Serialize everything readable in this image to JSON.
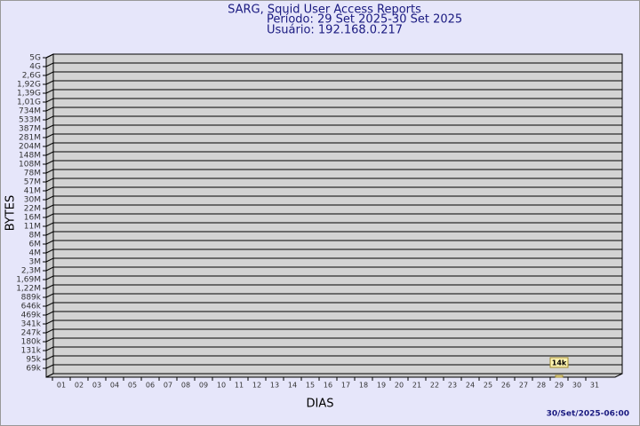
{
  "chart_data": {
    "type": "bar",
    "title": "SARG, Squid User Access Reports",
    "subtitle": [
      "Período: 29 Set 2025-30 Set 2025",
      "Usuário: 192.168.0.217"
    ],
    "y_label": "BYTES",
    "x_label": "DIAS",
    "footer": "30/Set/2025-06:00",
    "categories": [
      "01",
      "02",
      "03",
      "04",
      "05",
      "06",
      "07",
      "08",
      "09",
      "10",
      "11",
      "12",
      "13",
      "14",
      "15",
      "16",
      "17",
      "18",
      "19",
      "20",
      "21",
      "22",
      "23",
      "24",
      "25",
      "26",
      "27",
      "28",
      "29",
      "30",
      "31"
    ],
    "values": [
      null,
      null,
      null,
      null,
      null,
      null,
      null,
      null,
      null,
      null,
      null,
      null,
      null,
      null,
      null,
      null,
      null,
      null,
      null,
      null,
      null,
      null,
      null,
      null,
      null,
      null,
      null,
      null,
      14000,
      null,
      null
    ],
    "value_labels": [
      null,
      null,
      null,
      null,
      null,
      null,
      null,
      null,
      null,
      null,
      null,
      null,
      null,
      null,
      null,
      null,
      null,
      null,
      null,
      null,
      null,
      null,
      null,
      null,
      null,
      null,
      null,
      null,
      "14k",
      null,
      null
    ],
    "color": "#f5e6a0",
    "ylim": [
      0,
      5000000000
    ],
    "yticks": [
      {
        "value": 69000,
        "label": "69k"
      },
      {
        "value": 95000,
        "label": "95k"
      },
      {
        "value": 131000,
        "label": "131k"
      },
      {
        "value": 180000,
        "label": "180k"
      },
      {
        "value": 247000,
        "label": "247k"
      },
      {
        "value": 341000,
        "label": "341k"
      },
      {
        "value": 469000,
        "label": "469k"
      },
      {
        "value": 646000,
        "label": "646k"
      },
      {
        "value": 889000,
        "label": "889k"
      },
      {
        "value": 1220000,
        "label": "1,22M"
      },
      {
        "value": 1690000,
        "label": "1,69M"
      },
      {
        "value": 2300000,
        "label": "2,3M"
      },
      {
        "value": 3000000,
        "label": "3M"
      },
      {
        "value": 4000000,
        "label": "4M"
      },
      {
        "value": 6000000,
        "label": "6M"
      },
      {
        "value": 8000000,
        "label": "8M"
      },
      {
        "value": 11000000,
        "label": "11M"
      },
      {
        "value": 16000000,
        "label": "16M"
      },
      {
        "value": 22000000,
        "label": "22M"
      },
      {
        "value": 30000000,
        "label": "30M"
      },
      {
        "value": 41000000,
        "label": "41M"
      },
      {
        "value": 57000000,
        "label": "57M"
      },
      {
        "value": 78000000,
        "label": "78M"
      },
      {
        "value": 108000000,
        "label": "108M"
      },
      {
        "value": 148000000,
        "label": "148M"
      },
      {
        "value": 204000000,
        "label": "204M"
      },
      {
        "value": 281000000,
        "label": "281M"
      },
      {
        "value": 387000000,
        "label": "387M"
      },
      {
        "value": 533000000,
        "label": "533M"
      },
      {
        "value": 734000000,
        "label": "734M"
      },
      {
        "value": 1010000000,
        "label": "1,01G"
      },
      {
        "value": 1390000000,
        "label": "1,39G"
      },
      {
        "value": 1920000000,
        "label": "1,92G"
      },
      {
        "value": 2600000000,
        "label": "2,6G"
      },
      {
        "value": 4000000000,
        "label": "4G"
      },
      {
        "value": 5000000000,
        "label": "5G"
      }
    ],
    "grid": true
  }
}
